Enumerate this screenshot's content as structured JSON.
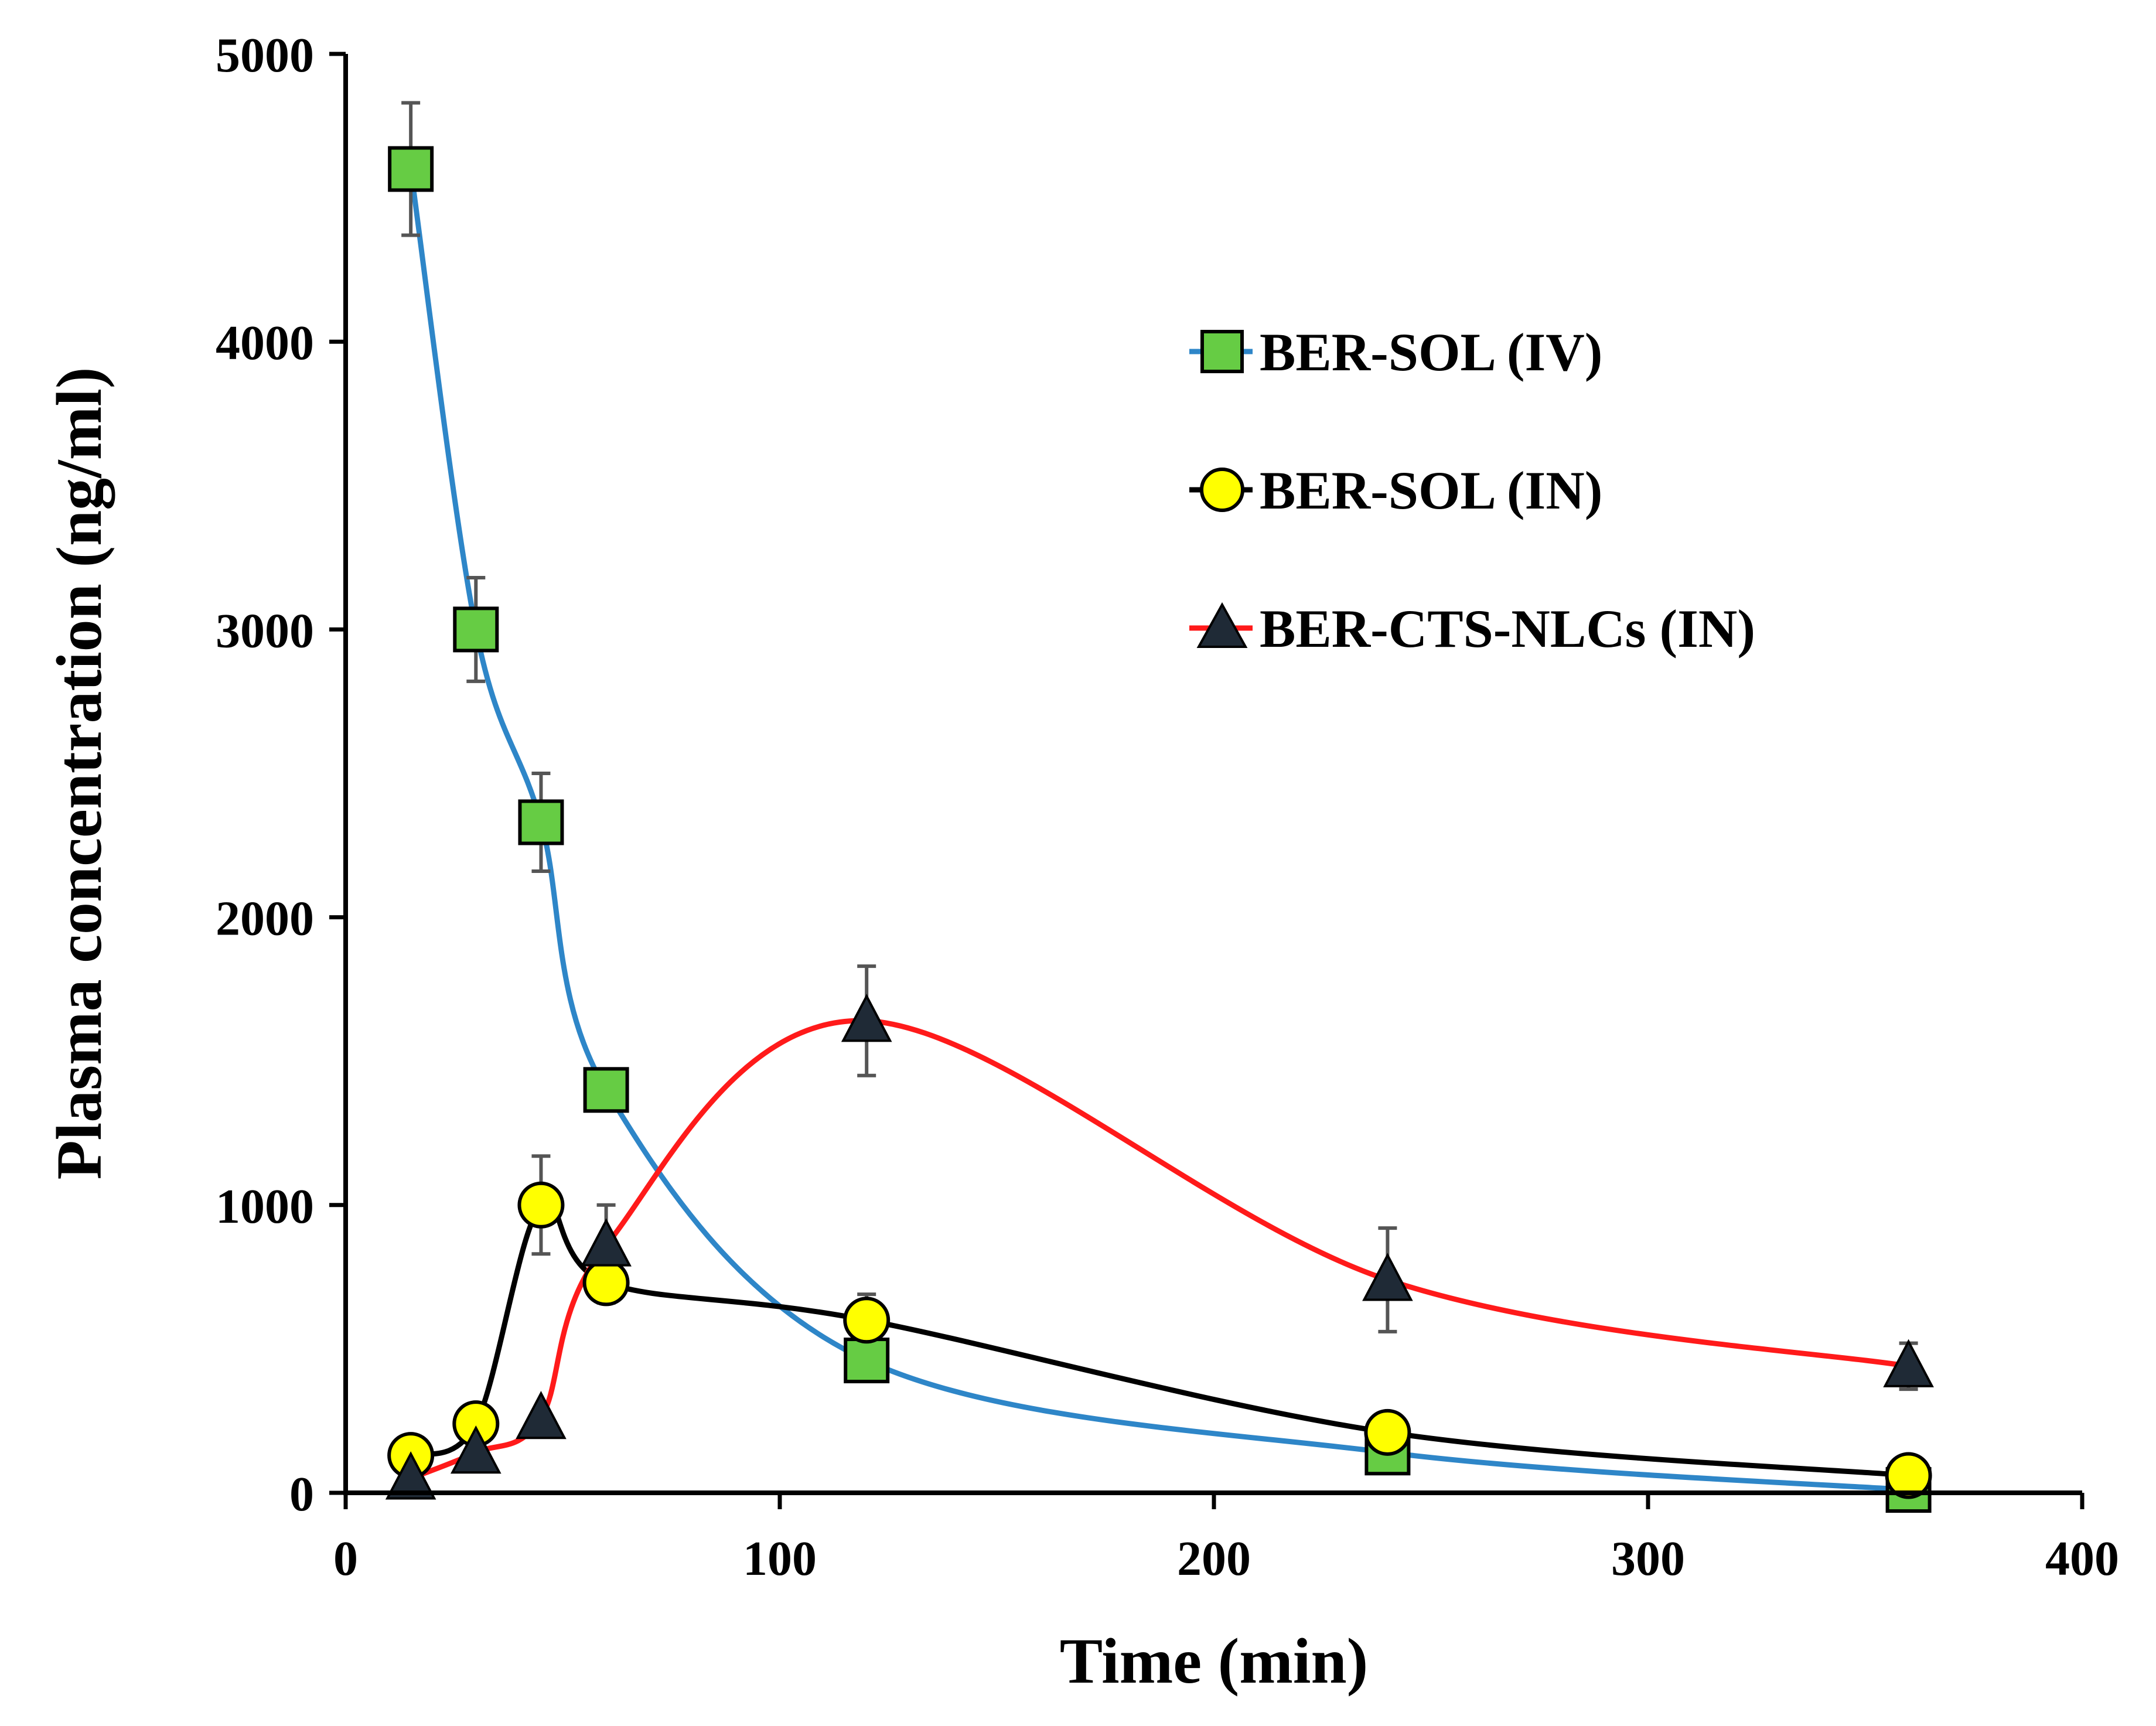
{
  "chart_data": {
    "type": "line",
    "title": "",
    "xlabel": "Time (min)",
    "ylabel": "Plasma concentration (ng/ml)",
    "xlim": [
      0,
      400
    ],
    "ylim": [
      0,
      5000
    ],
    "xticks": [
      "0",
      "100",
      "200",
      "300",
      "400"
    ],
    "yticks": [
      "0",
      "1000",
      "2000",
      "3000",
      "4000",
      "5000"
    ],
    "grid": false,
    "legend_position": "top-right",
    "series": [
      {
        "name": "BER-SOL (IV)",
        "marker": "square",
        "line_color": "#2e86c8",
        "marker_color": "#66cc44",
        "x": [
          15,
          30,
          45,
          60,
          120,
          240,
          360
        ],
        "y": [
          4600,
          3000,
          2330,
          1400,
          460,
          140,
          10
        ],
        "err": [
          230,
          180,
          170,
          0,
          0,
          0,
          0
        ]
      },
      {
        "name": "BER-SOL (IN)",
        "marker": "circle",
        "line_color": "#000000",
        "marker_color": "#ffff00",
        "x": [
          15,
          30,
          45,
          60,
          120,
          240,
          360
        ],
        "y": [
          130,
          240,
          1000,
          730,
          600,
          210,
          60
        ],
        "err": [
          0,
          0,
          170,
          70,
          90,
          0,
          0
        ]
      },
      {
        "name": "BER-CTS-NLCs (IN)",
        "marker": "triangle",
        "line_color": "#ff1a1a",
        "marker_color": "#1f2a36",
        "x": [
          15,
          30,
          45,
          60,
          120,
          240,
          360
        ],
        "y": [
          50,
          140,
          260,
          860,
          1640,
          740,
          440
        ],
        "err": [
          0,
          0,
          0,
          140,
          190,
          180,
          80
        ]
      }
    ]
  }
}
